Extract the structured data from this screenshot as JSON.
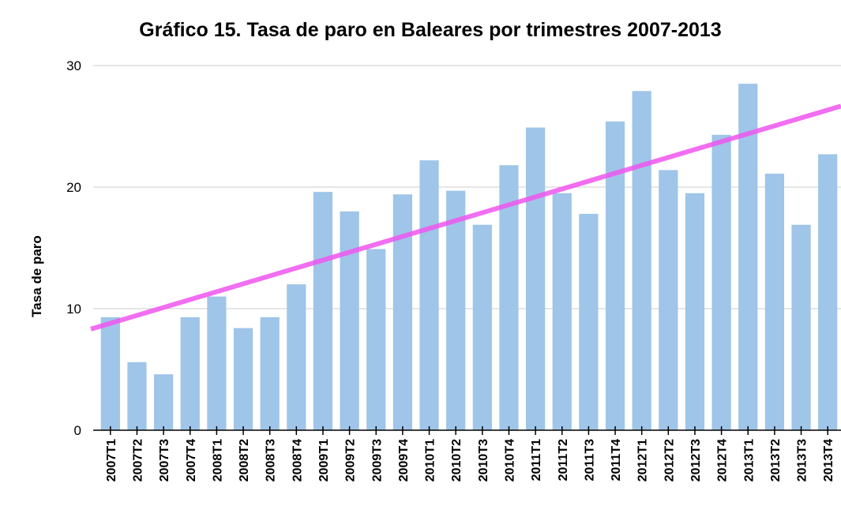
{
  "chart_data": {
    "type": "bar",
    "title": "Gráfico 15. Tasa de paro en Baleares por trimestres 2007-2013",
    "y_label": "Tasa de paro",
    "categories": [
      "2007T1",
      "2007T2",
      "2007T3",
      "2007T4",
      "2008T1",
      "2008T2",
      "2008T3",
      "2008T4",
      "2009T1",
      "2009T2",
      "2009T3",
      "2009T4",
      "2010T1",
      "2010T2",
      "2010T3",
      "2010T4",
      "2011T1",
      "2011T2",
      "2011T3",
      "2011T4",
      "2012T1",
      "2012T2",
      "2012T3",
      "2012T4",
      "2013T1",
      "2013T2",
      "2013T3",
      "2013T4"
    ],
    "values": [
      9.3,
      5.6,
      4.6,
      9.3,
      11.0,
      8.4,
      9.3,
      12.0,
      19.6,
      18.0,
      14.9,
      19.4,
      22.2,
      19.7,
      16.9,
      21.8,
      24.9,
      19.5,
      17.8,
      25.4,
      27.9,
      21.4,
      19.5,
      24.3,
      28.5,
      21.1,
      16.9,
      22.7
    ],
    "color": "#9fc5e8",
    "ylim": [
      0,
      30
    ],
    "yticks": [
      0,
      10,
      20,
      30
    ],
    "grid": true,
    "trendline": true,
    "trendline_color": "#ee55ee"
  }
}
